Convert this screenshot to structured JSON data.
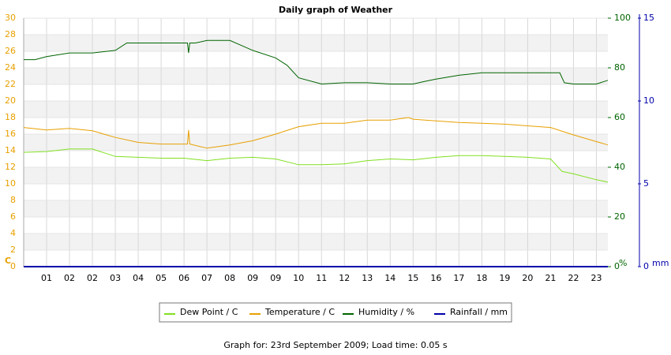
{
  "chart_data": {
    "type": "line",
    "title": "Daily graph of Weather",
    "ylabel": "C",
    "y2label": "%",
    "y3label": "mm",
    "footer": "Graph for: 23rd September 2009; Load time: 0.05 s",
    "xlim": [
      0,
      25.5
    ],
    "xticks": [
      {
        "value": 1,
        "label": "01"
      },
      {
        "value": 2,
        "label": "02"
      },
      {
        "value": 3,
        "label": "02"
      },
      {
        "value": 4,
        "label": "03"
      },
      {
        "value": 5,
        "label": "04"
      },
      {
        "value": 6,
        "label": "05"
      },
      {
        "value": 7,
        "label": "06"
      },
      {
        "value": 8,
        "label": "07"
      },
      {
        "value": 9,
        "label": "08"
      },
      {
        "value": 10,
        "label": "09"
      },
      {
        "value": 11,
        "label": "09"
      },
      {
        "value": 12,
        "label": "10"
      },
      {
        "value": 13,
        "label": "11"
      },
      {
        "value": 14,
        "label": "12"
      },
      {
        "value": 15,
        "label": "13"
      },
      {
        "value": 16,
        "label": "14"
      },
      {
        "value": 17,
        "label": "15"
      },
      {
        "value": 18,
        "label": "16"
      },
      {
        "value": 19,
        "label": "17"
      },
      {
        "value": 20,
        "label": "18"
      },
      {
        "value": 21,
        "label": "19"
      },
      {
        "value": 22,
        "label": "20"
      },
      {
        "value": 23,
        "label": "21"
      },
      {
        "value": 24,
        "label": "22"
      },
      {
        "value": 25,
        "label": "23"
      }
    ],
    "ylim": [
      0,
      30
    ],
    "yticks": [
      0,
      2,
      4,
      6,
      8,
      10,
      12,
      14,
      16,
      18,
      20,
      22,
      24,
      26,
      28,
      30
    ],
    "y2lim": [
      0,
      100
    ],
    "y2ticks": [
      0,
      20,
      40,
      60,
      80,
      100
    ],
    "y3lim": [
      0,
      15
    ],
    "y3ticks": [
      0,
      5,
      10,
      15
    ],
    "grid": true,
    "series": [
      {
        "name": "Dew Point / C",
        "color": "#80e020",
        "axis": "y",
        "x": [
          0,
          1,
          2,
          3,
          4,
          5,
          6,
          7,
          8,
          9,
          10,
          11,
          12,
          13,
          14,
          15,
          16,
          17,
          18,
          19,
          20,
          21,
          22,
          23,
          23.5,
          24,
          25,
          25.5
        ],
        "values": [
          13.8,
          13.9,
          14.2,
          14.2,
          13.3,
          13.2,
          13.1,
          13.1,
          12.8,
          13.1,
          13.2,
          13.0,
          12.3,
          12.3,
          12.4,
          12.8,
          13.0,
          12.9,
          13.2,
          13.4,
          13.4,
          13.3,
          13.2,
          13.0,
          11.5,
          11.2,
          10.5,
          10.2
        ]
      },
      {
        "name": "Temperature / C",
        "color": "#e8a000",
        "axis": "y",
        "x": [
          0,
          1,
          2,
          3,
          4,
          5,
          6,
          7,
          7.15,
          7.2,
          7.25,
          8,
          9,
          10,
          11,
          12,
          13,
          14,
          15,
          16,
          16.8,
          17,
          18,
          19,
          20,
          21,
          22,
          23,
          24,
          25,
          25.5
        ],
        "values": [
          16.8,
          16.5,
          16.7,
          16.4,
          15.6,
          15.0,
          14.8,
          14.8,
          14.8,
          16.5,
          14.8,
          14.3,
          14.7,
          15.2,
          16.0,
          16.9,
          17.3,
          17.3,
          17.7,
          17.7,
          18.0,
          17.8,
          17.6,
          17.4,
          17.3,
          17.2,
          17.0,
          16.8,
          15.9,
          15.1,
          14.7
        ]
      },
      {
        "name": "Humidity / %",
        "color": "#006400",
        "axis": "y2",
        "x": [
          0,
          0.5,
          1,
          2,
          3,
          4,
          4.5,
          5,
          6,
          7,
          7.15,
          7.2,
          7.25,
          7.5,
          8,
          9,
          9.5,
          10,
          11,
          11.5,
          12,
          13,
          14,
          15,
          16,
          17,
          17.5,
          18,
          19,
          20,
          21,
          22,
          23,
          23.4,
          23.6,
          24,
          25,
          25.5
        ],
        "values": [
          83.3,
          83.3,
          84.5,
          86,
          86,
          87,
          90,
          90,
          90,
          90,
          90,
          86,
          90,
          90,
          91,
          91,
          89,
          87,
          84,
          81,
          76,
          73.5,
          74,
          74,
          73.5,
          73.5,
          74.5,
          75.5,
          77,
          78,
          78,
          78,
          78,
          78,
          74,
          73.5,
          73.5,
          75
        ]
      },
      {
        "name": "Rainfall / mm",
        "color": "#0000aa",
        "axis": "y3",
        "x": [
          0,
          25.5
        ],
        "values": [
          0,
          0
        ]
      }
    ]
  }
}
